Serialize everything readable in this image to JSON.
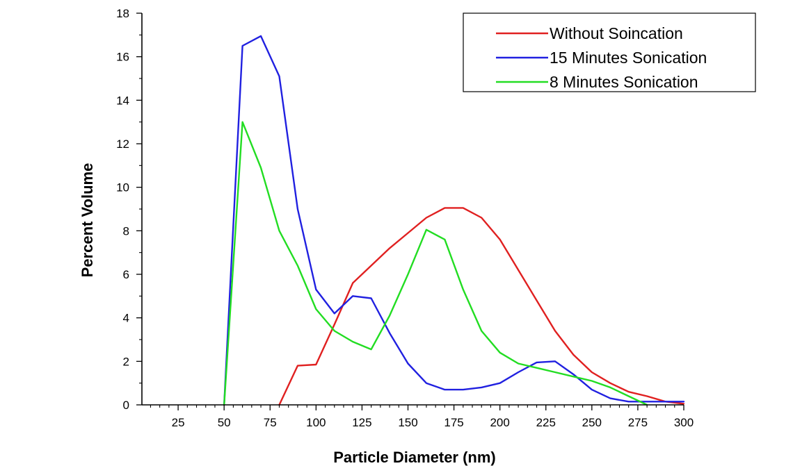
{
  "chart_data": {
    "type": "line",
    "title": "",
    "xlabel": "Particle Diameter (nm)",
    "ylabel": "Percent Volume",
    "xlim": [
      0,
      300
    ],
    "ylim": [
      0,
      18
    ],
    "x_ticks": [
      25,
      50,
      75,
      100,
      125,
      150,
      175,
      200,
      225,
      250,
      275,
      300
    ],
    "y_ticks": [
      0,
      2,
      4,
      6,
      8,
      10,
      12,
      14,
      16,
      18
    ],
    "x_tick_labels": [
      "25",
      "50",
      "75",
      "100",
      "125",
      "150",
      "175",
      "200",
      "225",
      "250",
      "275",
      "300"
    ],
    "y_tick_labels": [
      "0",
      "2",
      "4",
      "6",
      "8",
      "10",
      "12",
      "14",
      "16",
      "18"
    ],
    "grid": false,
    "legend_position": "top-right",
    "series": [
      {
        "name": "Without Soincation",
        "color": "#e02020",
        "x": [
          80,
          90,
          100,
          110,
          120,
          130,
          140,
          150,
          160,
          170,
          180,
          190,
          200,
          210,
          220,
          230,
          240,
          250,
          260,
          270,
          280,
          290,
          300
        ],
        "values": [
          0,
          1.8,
          1.85,
          3.7,
          5.6,
          6.4,
          7.2,
          7.9,
          8.6,
          9.05,
          9.05,
          8.6,
          7.6,
          6.2,
          4.8,
          3.4,
          2.3,
          1.5,
          1.0,
          0.6,
          0.4,
          0.15,
          0.05
        ]
      },
      {
        "name": "15 Minutes Sonication",
        "color": "#2020e0",
        "x": [
          50,
          60,
          70,
          80,
          90,
          100,
          110,
          120,
          130,
          140,
          150,
          160,
          170,
          180,
          190,
          200,
          210,
          220,
          230,
          240,
          250,
          260,
          270,
          280,
          290,
          300
        ],
        "values": [
          0,
          16.5,
          16.95,
          15.1,
          9.0,
          5.3,
          4.2,
          5.0,
          4.9,
          3.3,
          1.9,
          1.0,
          0.7,
          0.7,
          0.8,
          1.0,
          1.5,
          1.95,
          2.0,
          1.4,
          0.7,
          0.3,
          0.15,
          0.15,
          0.15,
          0.15
        ]
      },
      {
        "name": "8 Minutes Sonication",
        "color": "#22dd22",
        "x": [
          50,
          60,
          70,
          80,
          90,
          100,
          110,
          120,
          130,
          140,
          150,
          160,
          170,
          180,
          190,
          200,
          210,
          220,
          230,
          240,
          250,
          260,
          270,
          280
        ],
        "values": [
          0,
          13.0,
          10.9,
          8.0,
          6.4,
          4.4,
          3.4,
          2.9,
          2.55,
          4.1,
          6.0,
          8.05,
          7.6,
          5.3,
          3.4,
          2.4,
          1.9,
          1.7,
          1.5,
          1.3,
          1.1,
          0.8,
          0.4,
          0.0
        ]
      }
    ]
  }
}
